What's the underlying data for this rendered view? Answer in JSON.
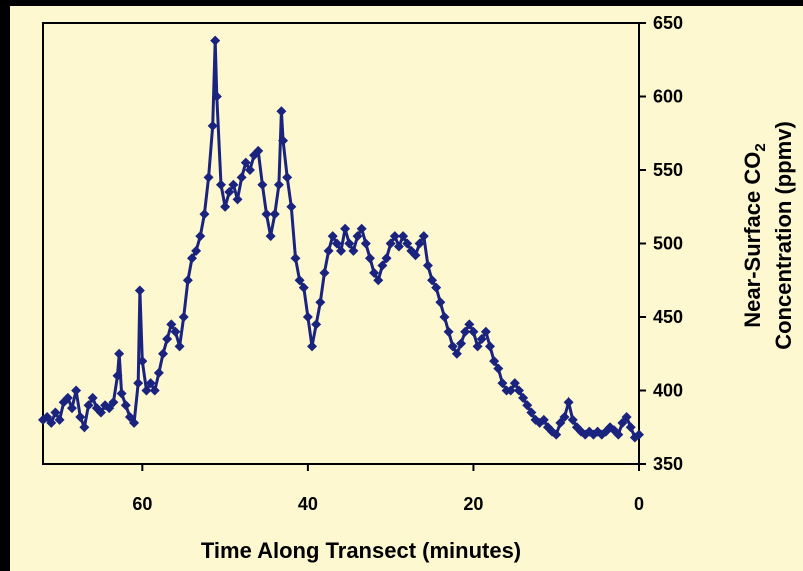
{
  "chart_data": {
    "type": "scatter",
    "title": "",
    "xlabel": "Time Along Transect (minutes)",
    "ylabel_line1_prefix": "Near-Surface CO",
    "ylabel_line1_subscript": "2",
    "ylabel_line2": "Concentration (ppmv)",
    "xlim": [
      72,
      0
    ],
    "ylim": [
      350,
      650
    ],
    "x_ticks": [
      "60",
      "40",
      "20",
      "0"
    ],
    "y_ticks": [
      "650",
      "600",
      "550",
      "500",
      "450",
      "400",
      "350"
    ],
    "x_tick_values": [
      60,
      40,
      20,
      0
    ],
    "y_tick_values": [
      650,
      600,
      550,
      500,
      450,
      400,
      350
    ],
    "grid": false,
    "legend": "none",
    "marker": "diamond",
    "colors": {
      "series": "#1a237e",
      "background": "#fdf8d0",
      "frame": "#000000"
    },
    "series": [
      {
        "points": [
          [
            72,
            380
          ],
          [
            71.5,
            382
          ],
          [
            71,
            378
          ],
          [
            70.5,
            385
          ],
          [
            70,
            380
          ],
          [
            69.5,
            392
          ],
          [
            69,
            395
          ],
          [
            68.5,
            388
          ],
          [
            68,
            400
          ],
          [
            67.5,
            382
          ],
          [
            67,
            375
          ],
          [
            66.5,
            390
          ],
          [
            66,
            395
          ],
          [
            65.5,
            388
          ],
          [
            65,
            385
          ],
          [
            64.5,
            390
          ],
          [
            64,
            388
          ],
          [
            63.5,
            392
          ],
          [
            63,
            410
          ],
          [
            62.8,
            425
          ],
          [
            62.5,
            398
          ],
          [
            62,
            390
          ],
          [
            61.5,
            382
          ],
          [
            61,
            378
          ],
          [
            60.5,
            405
          ],
          [
            60.3,
            468
          ],
          [
            60,
            420
          ],
          [
            59.5,
            400
          ],
          [
            59,
            405
          ],
          [
            58.5,
            400
          ],
          [
            58,
            412
          ],
          [
            57.5,
            425
          ],
          [
            57,
            435
          ],
          [
            56.5,
            445
          ],
          [
            56,
            440
          ],
          [
            55.5,
            430
          ],
          [
            55,
            450
          ],
          [
            54.5,
            475
          ],
          [
            54,
            490
          ],
          [
            53.5,
            495
          ],
          [
            53,
            505
          ],
          [
            52.5,
            520
          ],
          [
            52,
            545
          ],
          [
            51.5,
            580
          ],
          [
            51.2,
            638
          ],
          [
            51,
            600
          ],
          [
            50.5,
            540
          ],
          [
            50,
            525
          ],
          [
            49.5,
            535
          ],
          [
            49,
            540
          ],
          [
            48.5,
            530
          ],
          [
            48,
            545
          ],
          [
            47.5,
            555
          ],
          [
            47,
            550
          ],
          [
            46.5,
            560
          ],
          [
            46,
            563
          ],
          [
            45.5,
            540
          ],
          [
            45,
            520
          ],
          [
            44.5,
            505
          ],
          [
            44,
            520
          ],
          [
            43.5,
            540
          ],
          [
            43.2,
            590
          ],
          [
            43,
            570
          ],
          [
            42.5,
            545
          ],
          [
            42,
            525
          ],
          [
            41.5,
            490
          ],
          [
            41,
            475
          ],
          [
            40.5,
            470
          ],
          [
            40,
            450
          ],
          [
            39.5,
            430
          ],
          [
            39,
            445
          ],
          [
            38.5,
            460
          ],
          [
            38,
            480
          ],
          [
            37.5,
            495
          ],
          [
            37,
            505
          ],
          [
            36.5,
            500
          ],
          [
            36,
            495
          ],
          [
            35.5,
            510
          ],
          [
            35,
            500
          ],
          [
            34.5,
            495
          ],
          [
            34,
            505
          ],
          [
            33.5,
            510
          ],
          [
            33,
            500
          ],
          [
            32.5,
            490
          ],
          [
            32,
            480
          ],
          [
            31.5,
            475
          ],
          [
            31,
            485
          ],
          [
            30.5,
            490
          ],
          [
            30,
            500
          ],
          [
            29.5,
            505
          ],
          [
            29,
            498
          ],
          [
            28.5,
            505
          ],
          [
            28,
            500
          ],
          [
            27.5,
            495
          ],
          [
            27,
            492
          ],
          [
            26.5,
            500
          ],
          [
            26,
            505
          ],
          [
            25.5,
            485
          ],
          [
            25,
            475
          ],
          [
            24.5,
            470
          ],
          [
            24,
            460
          ],
          [
            23.5,
            450
          ],
          [
            23,
            440
          ],
          [
            22.5,
            430
          ],
          [
            22,
            425
          ],
          [
            21.5,
            432
          ],
          [
            21,
            440
          ],
          [
            20.5,
            445
          ],
          [
            20,
            440
          ],
          [
            19.5,
            430
          ],
          [
            19,
            435
          ],
          [
            18.5,
            440
          ],
          [
            18,
            430
          ],
          [
            17.5,
            420
          ],
          [
            17,
            415
          ],
          [
            16.5,
            405
          ],
          [
            16,
            400
          ],
          [
            15.5,
            400
          ],
          [
            15,
            405
          ],
          [
            14.5,
            400
          ],
          [
            14,
            395
          ],
          [
            13.5,
            390
          ],
          [
            13,
            385
          ],
          [
            12.5,
            380
          ],
          [
            12,
            378
          ],
          [
            11.5,
            380
          ],
          [
            11,
            375
          ],
          [
            10.5,
            372
          ],
          [
            10,
            370
          ],
          [
            9.5,
            378
          ],
          [
            9,
            382
          ],
          [
            8.5,
            392
          ],
          [
            8,
            380
          ],
          [
            7.5,
            375
          ],
          [
            7,
            372
          ],
          [
            6.5,
            370
          ],
          [
            6,
            372
          ],
          [
            5.5,
            370
          ],
          [
            5,
            372
          ],
          [
            4.5,
            370
          ],
          [
            4,
            372
          ],
          [
            3.5,
            375
          ],
          [
            3,
            373
          ],
          [
            2.5,
            370
          ],
          [
            2,
            378
          ],
          [
            1.5,
            382
          ],
          [
            1,
            375
          ],
          [
            0.5,
            368
          ],
          [
            0,
            370
          ]
        ]
      }
    ]
  }
}
